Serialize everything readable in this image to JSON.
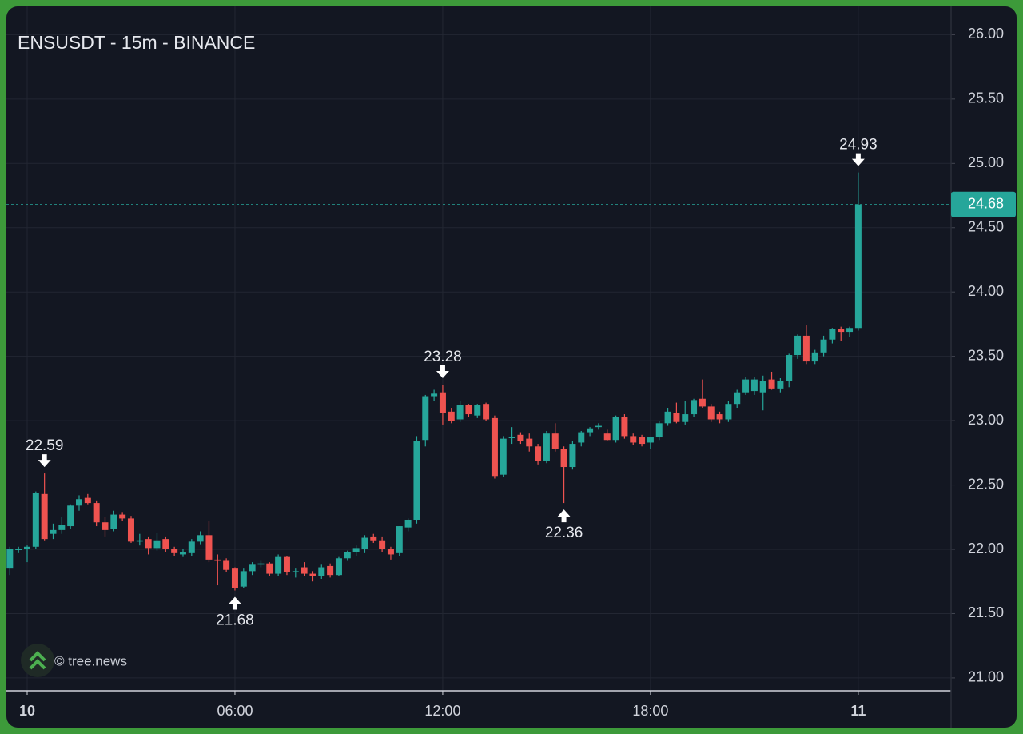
{
  "chart_data": {
    "type": "candlestick",
    "title": "ENSUSDT - 15m - BINANCE",
    "watermark": "© tree.news",
    "up_color": "#26a69a",
    "down_color": "#ef5350",
    "grid": true,
    "xlim": [
      -0.6,
      26.68
    ],
    "xticks": [
      {
        "value": 0,
        "label": "10"
      },
      {
        "value": 6,
        "label": "06:00"
      },
      {
        "value": 12,
        "label": "12:00"
      },
      {
        "value": 18,
        "label": "18:00"
      },
      {
        "value": 24,
        "label": "11"
      }
    ],
    "ylim": [
      20.9,
      26.22
    ],
    "yticks": [
      {
        "value": 21,
        "label": "21.00"
      },
      {
        "value": 21.5,
        "label": "21.50"
      },
      {
        "value": 22,
        "label": "22.00"
      },
      {
        "value": 22.5,
        "label": "22.50"
      },
      {
        "value": 23,
        "label": "23.00"
      },
      {
        "value": 23.5,
        "label": "23.50"
      },
      {
        "value": 24,
        "label": "24.00"
      },
      {
        "value": 24.5,
        "label": "24.50"
      },
      {
        "value": 25,
        "label": "25.00"
      },
      {
        "value": 25.5,
        "label": "25.50"
      },
      {
        "value": 26,
        "label": "26.00"
      }
    ],
    "x": [
      -0.5,
      -0.25,
      0,
      0.25,
      0.5,
      0.75,
      1,
      1.25,
      1.5,
      1.75,
      2,
      2.25,
      2.5,
      2.75,
      3,
      3.25,
      3.5,
      3.75,
      4,
      4.25,
      4.5,
      4.75,
      5,
      5.25,
      5.5,
      5.75,
      6,
      6.25,
      6.5,
      6.75,
      7,
      7.25,
      7.5,
      7.75,
      8,
      8.25,
      8.5,
      8.75,
      9,
      9.25,
      9.5,
      9.75,
      10,
      10.25,
      10.5,
      10.75,
      11,
      11.25,
      11.5,
      11.75,
      12,
      12.25,
      12.5,
      12.75,
      13,
      13.25,
      13.5,
      13.75,
      14,
      14.25,
      14.5,
      14.75,
      15,
      15.25,
      15.5,
      15.75,
      16,
      16.25,
      16.5,
      16.75,
      17,
      17.25,
      17.5,
      17.75,
      18,
      18.25,
      18.5,
      18.75,
      19,
      19.25,
      19.5,
      19.75,
      20,
      20.25,
      20.5,
      20.75,
      21,
      21.25,
      21.5,
      21.75,
      22,
      22.25,
      22.5,
      22.75,
      23,
      23.25,
      23.5,
      23.75,
      24
    ],
    "open": [
      21.85,
      22.0,
      22.0,
      22.02,
      22.43,
      22.12,
      22.15,
      22.18,
      22.34,
      22.4,
      22.36,
      22.21,
      22.16,
      22.27,
      22.24,
      22.06,
      22.08,
      22.01,
      22.08,
      22.0,
      21.96,
      21.97,
      22.06,
      22.11,
      21.92,
      21.91,
      21.85,
      21.71,
      21.83,
      21.88,
      21.89,
      21.81,
      21.94,
      21.82,
      21.86,
      21.81,
      21.79,
      21.87,
      21.8,
      21.93,
      21.98,
      22.0,
      22.1,
      22.07,
      22.0,
      21.97,
      22.17,
      22.23,
      22.85,
      23.19,
      23.22,
      23.07,
      23.01,
      23.12,
      23.04,
      23.13,
      23.02,
      22.58,
      22.87,
      22.89,
      22.86,
      22.8,
      22.69,
      22.9,
      22.78,
      22.64,
      22.83,
      22.91,
      22.95,
      22.9,
      22.85,
      23.03,
      22.88,
      22.87,
      22.83,
      22.87,
      22.98,
      23.06,
      22.99,
      23.05,
      23.17,
      23.11,
      23.05,
      23.01,
      23.13,
      23.22,
      23.23,
      23.22,
      23.32,
      23.25,
      23.31,
      23.51,
      23.66,
      23.46,
      23.53,
      23.63,
      23.71,
      23.69,
      23.72
    ],
    "high": [
      22.02,
      22.02,
      22.03,
      22.45,
      22.59,
      22.2,
      22.25,
      22.35,
      22.42,
      22.43,
      22.38,
      22.25,
      22.3,
      22.29,
      22.26,
      22.12,
      22.1,
      22.13,
      22.1,
      22.02,
      22.0,
      22.08,
      22.14,
      22.22,
      21.96,
      21.93,
      21.86,
      21.85,
      21.9,
      21.91,
      21.9,
      21.96,
      21.95,
      21.85,
      21.9,
      21.83,
      21.88,
      21.89,
      21.94,
      21.99,
      22.03,
      22.11,
      22.12,
      22.1,
      22.02,
      22.18,
      22.24,
      22.88,
      23.2,
      23.24,
      23.28,
      23.1,
      23.15,
      23.13,
      23.13,
      23.14,
      23.04,
      22.88,
      22.95,
      22.91,
      22.9,
      22.82,
      22.92,
      22.98,
      22.8,
      22.84,
      22.92,
      22.95,
      22.98,
      22.93,
      23.04,
      23.05,
      22.9,
      22.89,
      22.86,
      23.0,
      23.1,
      23.14,
      23.15,
      23.17,
      23.32,
      23.13,
      23.07,
      23.15,
      23.24,
      23.34,
      23.34,
      23.35,
      23.38,
      23.33,
      23.52,
      23.67,
      23.74,
      23.55,
      23.66,
      23.72,
      23.73,
      23.73,
      24.93
    ],
    "low": [
      21.8,
      21.97,
      21.9,
      22.0,
      22.07,
      22.08,
      22.12,
      22.16,
      22.3,
      22.35,
      22.18,
      22.1,
      22.14,
      22.22,
      22.05,
      22.03,
      21.96,
      21.99,
      21.98,
      21.95,
      21.94,
      21.95,
      22.04,
      21.9,
      21.72,
      21.82,
      21.68,
      21.7,
      21.8,
      21.86,
      21.79,
      21.79,
      21.8,
      21.78,
      21.79,
      21.75,
      21.77,
      21.78,
      21.79,
      21.91,
      21.95,
      21.97,
      22.05,
      21.98,
      21.92,
      21.95,
      22.14,
      22.2,
      22.8,
      23.15,
      22.97,
      22.98,
      22.99,
      23.03,
      23.02,
      23.0,
      22.55,
      22.56,
      22.82,
      22.82,
      22.76,
      22.66,
      22.67,
      22.76,
      22.36,
      22.62,
      22.8,
      22.88,
      22.93,
      22.84,
      22.83,
      22.86,
      22.81,
      22.8,
      22.78,
      22.85,
      22.96,
      22.98,
      22.97,
      23.03,
      23.1,
      22.99,
      22.98,
      22.99,
      23.1,
      23.2,
      23.2,
      23.08,
      23.24,
      23.22,
      23.26,
      23.48,
      23.44,
      23.44,
      23.5,
      23.6,
      23.62,
      23.65,
      23.7
    ],
    "close": [
      22.0,
      22.0,
      22.02,
      22.44,
      22.08,
      22.15,
      22.19,
      22.34,
      22.39,
      22.36,
      22.21,
      22.15,
      22.27,
      22.24,
      22.06,
      22.07,
      22.01,
      22.07,
      22.0,
      21.97,
      21.98,
      22.06,
      22.11,
      21.92,
      21.91,
      21.84,
      21.7,
      21.83,
      21.88,
      21.89,
      21.81,
      21.94,
      21.82,
      21.83,
      21.81,
      21.79,
      21.86,
      21.8,
      21.93,
      21.98,
      22.01,
      22.09,
      22.07,
      22.0,
      21.96,
      22.18,
      22.23,
      22.84,
      23.19,
      23.21,
      23.06,
      23.0,
      23.12,
      23.05,
      23.12,
      23.01,
      22.57,
      22.86,
      22.87,
      22.84,
      22.8,
      22.69,
      22.9,
      22.78,
      22.64,
      22.82,
      22.91,
      22.94,
      22.96,
      22.85,
      23.03,
      22.88,
      22.83,
      22.82,
      22.87,
      22.98,
      23.07,
      22.99,
      23.05,
      23.16,
      23.11,
      23.01,
      23.01,
      23.13,
      23.22,
      23.32,
      23.32,
      23.31,
      23.25,
      23.31,
      23.51,
      23.66,
      23.46,
      23.53,
      23.63,
      23.71,
      23.69,
      23.72,
      24.68
    ],
    "annotations": [
      {
        "x": 0.5,
        "value": 22.59,
        "position": "above"
      },
      {
        "x": 6,
        "value": 21.68,
        "position": "below"
      },
      {
        "x": 12,
        "value": 23.28,
        "position": "above"
      },
      {
        "x": 15.5,
        "value": 22.36,
        "position": "below"
      },
      {
        "x": 24,
        "value": 24.93,
        "position": "above"
      }
    ],
    "last_price": {
      "value": 24.68,
      "color": "#26a69a"
    }
  }
}
